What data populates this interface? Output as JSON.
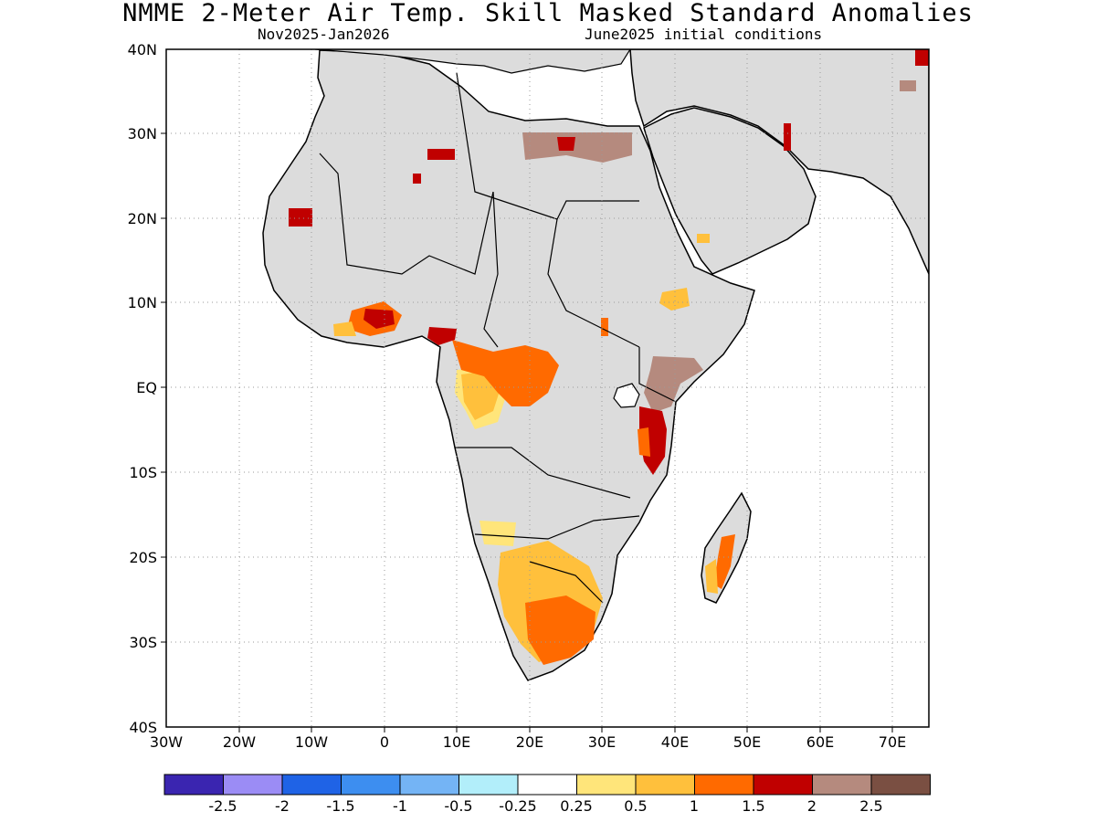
{
  "header": {
    "title": "NMME 2-Meter Air Temp. Skill Masked Standard Anomalies",
    "period": "Nov2025-Jan2026",
    "init": "June2025 initial conditions"
  },
  "axes": {
    "lon_labels": [
      "30W",
      "20W",
      "10W",
      "0",
      "10E",
      "20E",
      "30E",
      "40E",
      "50E",
      "60E",
      "70E"
    ],
    "lat_labels": [
      "40N",
      "30N",
      "20N",
      "10N",
      "EQ",
      "10S",
      "20S",
      "30S",
      "40S"
    ]
  },
  "colorbar": {
    "colors": [
      "#3a25b0",
      "#9b8cf5",
      "#1f63e6",
      "#3d8ef0",
      "#74b4f5",
      "#b2eefa",
      "#ffffff",
      "#ffe57a",
      "#ffc03c",
      "#ff6a00",
      "#c00000",
      "#b58a7e",
      "#7a4f42"
    ],
    "labels": [
      "-2.5",
      "-2",
      "-1.5",
      "-1",
      "-0.5",
      "-0.25",
      "0.25",
      "0.5",
      "1",
      "1.5",
      "2",
      "2.5"
    ]
  },
  "map": {
    "mask_color": "#dcdcdc",
    "ocean_color": "#ffffff",
    "coast_color": "#000000"
  }
}
